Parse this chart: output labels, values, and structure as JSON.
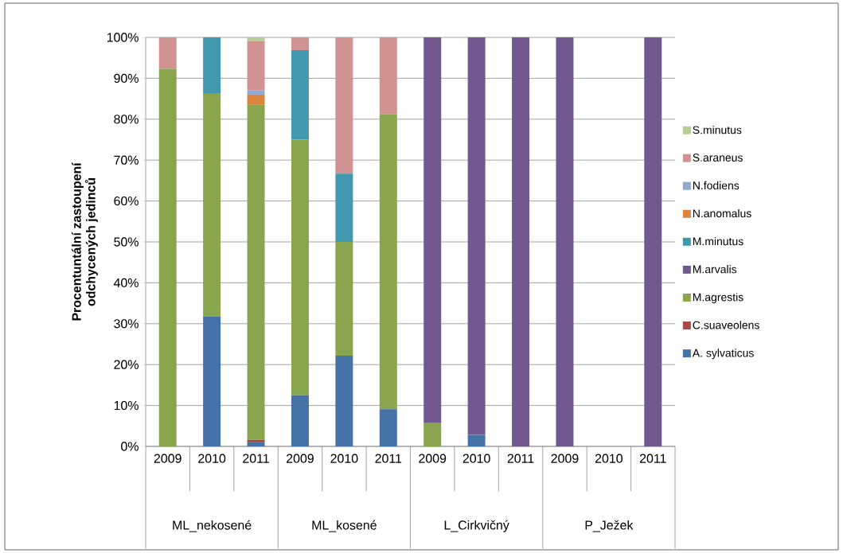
{
  "chart_data": {
    "type": "bar",
    "stacked": true,
    "ylabel": "Procentuntální zastoupení odchycených jedinců",
    "categories": [
      "2009",
      "2010",
      "2011",
      "2009",
      "2010",
      "2011",
      "2009",
      "2010",
      "2011",
      "2009",
      "2010",
      "2011"
    ],
    "annotations": [
      "ML_nekosené",
      "ML_kosené",
      "L_Cirkvičný",
      "P_Ježek"
    ],
    "series": [
      {
        "name": "A. sylvaticus",
        "color": "#4572a7",
        "values": [
          null,
          31.8,
          1.0,
          12.5,
          22.2,
          9.1,
          null,
          2.8,
          null,
          null,
          null,
          null
        ]
      },
      {
        "name": "C.suaveolens",
        "color": "#aa4643",
        "values": [
          null,
          null,
          0.6,
          null,
          null,
          null,
          null,
          null,
          null,
          null,
          null,
          null
        ]
      },
      {
        "name": "M.agrestis",
        "color": "#89a54e",
        "values": [
          92.3,
          54.6,
          82.0,
          62.5,
          27.8,
          72.1,
          5.7,
          null,
          null,
          null,
          null,
          null
        ]
      },
      {
        "name": "M.arvalis",
        "color": "#71588f",
        "values": [
          null,
          null,
          null,
          null,
          null,
          null,
          94.3,
          97.2,
          100,
          100,
          null,
          100
        ]
      },
      {
        "name": "M.minutus",
        "color": "#4198af",
        "values": [
          null,
          13.6,
          null,
          21.9,
          16.7,
          null,
          null,
          null,
          null,
          null,
          null,
          null
        ]
      },
      {
        "name": "N.anomalus",
        "color": "#db843d",
        "values": [
          null,
          null,
          2.4,
          null,
          null,
          null,
          null,
          null,
          null,
          null,
          null,
          null
        ]
      },
      {
        "name": "N.fodiens",
        "color": "#93a9cf",
        "values": [
          null,
          null,
          1.0,
          null,
          null,
          null,
          null,
          null,
          null,
          null,
          null,
          null
        ]
      },
      {
        "name": "S.araneus",
        "color": "#d19392",
        "values": [
          7.7,
          null,
          12.1,
          3.1,
          33.3,
          18.8,
          null,
          null,
          null,
          null,
          null,
          null
        ]
      },
      {
        "name": "S.minutus",
        "color": "#b9cd96",
        "values": [
          null,
          null,
          0.9,
          null,
          null,
          null,
          null,
          null,
          null,
          null,
          null,
          null
        ]
      }
    ],
    "ylim": [
      0,
      100
    ],
    "yticks": [
      {
        "value": 0,
        "label": "0%"
      },
      {
        "value": 10,
        "label": "10%"
      },
      {
        "value": 20,
        "label": "20%"
      },
      {
        "value": 30,
        "label": "30%"
      },
      {
        "value": 40,
        "label": "40%"
      },
      {
        "value": 50,
        "label": "50%"
      },
      {
        "value": 60,
        "label": "60%"
      },
      {
        "value": 70,
        "label": "70%"
      },
      {
        "value": 80,
        "label": "80%"
      },
      {
        "value": 90,
        "label": "90%"
      },
      {
        "value": 100,
        "label": "100%"
      }
    ],
    "grid": "y",
    "legend": "right"
  }
}
